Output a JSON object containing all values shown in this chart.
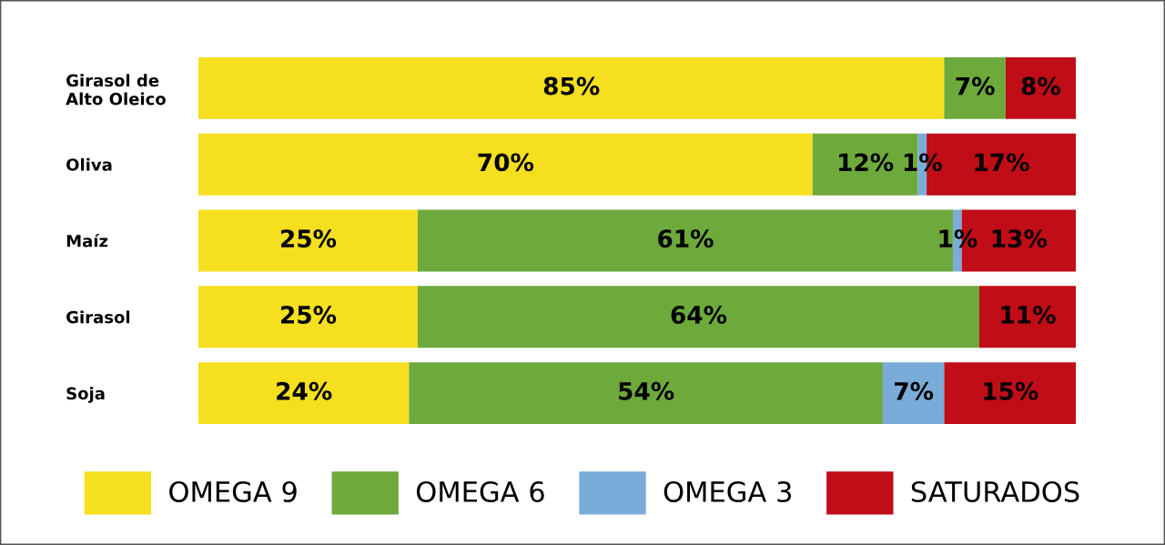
{
  "chart_data": {
    "type": "bar",
    "orientation": "horizontal",
    "stacked": true,
    "categories": [
      "Girasol de\nAlto Oleico",
      "Oliva",
      "Maíz",
      "Girasol",
      "Soja"
    ],
    "xlim": [
      0,
      100
    ],
    "tick_labels": "y",
    "grid": false,
    "legend": "bottom",
    "series": [
      {
        "name": "OMEGA 9",
        "color": "#f5df1f",
        "values": [
          85,
          70,
          25,
          25,
          24
        ],
        "value_labels": [
          "85%",
          "70%",
          "25%",
          "25%",
          "24%"
        ]
      },
      {
        "name": "OMEGA 6",
        "color": "#6ea93c",
        "values": [
          7,
          12,
          61,
          64,
          54
        ],
        "value_labels": [
          "7%",
          "12%",
          "61%",
          "64%",
          "54%"
        ]
      },
      {
        "name": "OMEGA 3",
        "color": "#79acd9",
        "values": [
          null,
          1,
          1,
          null,
          7
        ],
        "value_labels": [
          null,
          "1%",
          "1%",
          null,
          "7%"
        ]
      },
      {
        "name": "SATURADOS",
        "color": "#c00d17",
        "values": [
          8,
          17,
          13,
          11,
          15
        ],
        "value_labels": [
          "8%",
          "17%",
          "13%",
          "11%",
          "15%"
        ]
      }
    ]
  }
}
